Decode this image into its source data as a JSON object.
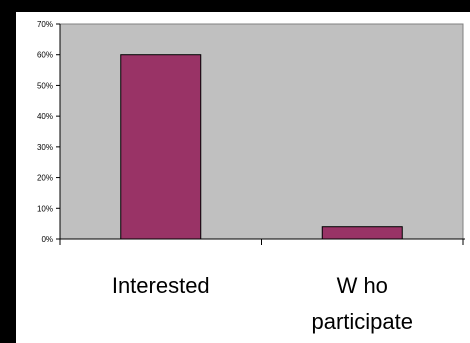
{
  "chart_data": {
    "type": "bar",
    "categories": [
      "Interested",
      "Who participate"
    ],
    "category_label_lines": [
      [
        "Interested"
      ],
      [
        "W ho",
        "participate"
      ]
    ],
    "values": [
      0.6,
      0.04
    ],
    "ylim": [
      0,
      0.7
    ],
    "yticks": [
      0,
      0.1,
      0.2,
      0.3,
      0.4,
      0.5,
      0.6,
      0.7
    ],
    "ytick_labels": [
      "0%",
      "10%",
      "20%",
      "30%",
      "40%",
      "50%",
      "60%",
      "70%"
    ],
    "title": "",
    "xlabel": "",
    "ylabel": "",
    "grid": false,
    "legend": "none",
    "colors": {
      "bar_fill": "#993366",
      "bar_stroke": "#000000",
      "plot_background": "#c0c0c0",
      "chart_background": "#ffffff",
      "page_background": "#000000"
    }
  }
}
